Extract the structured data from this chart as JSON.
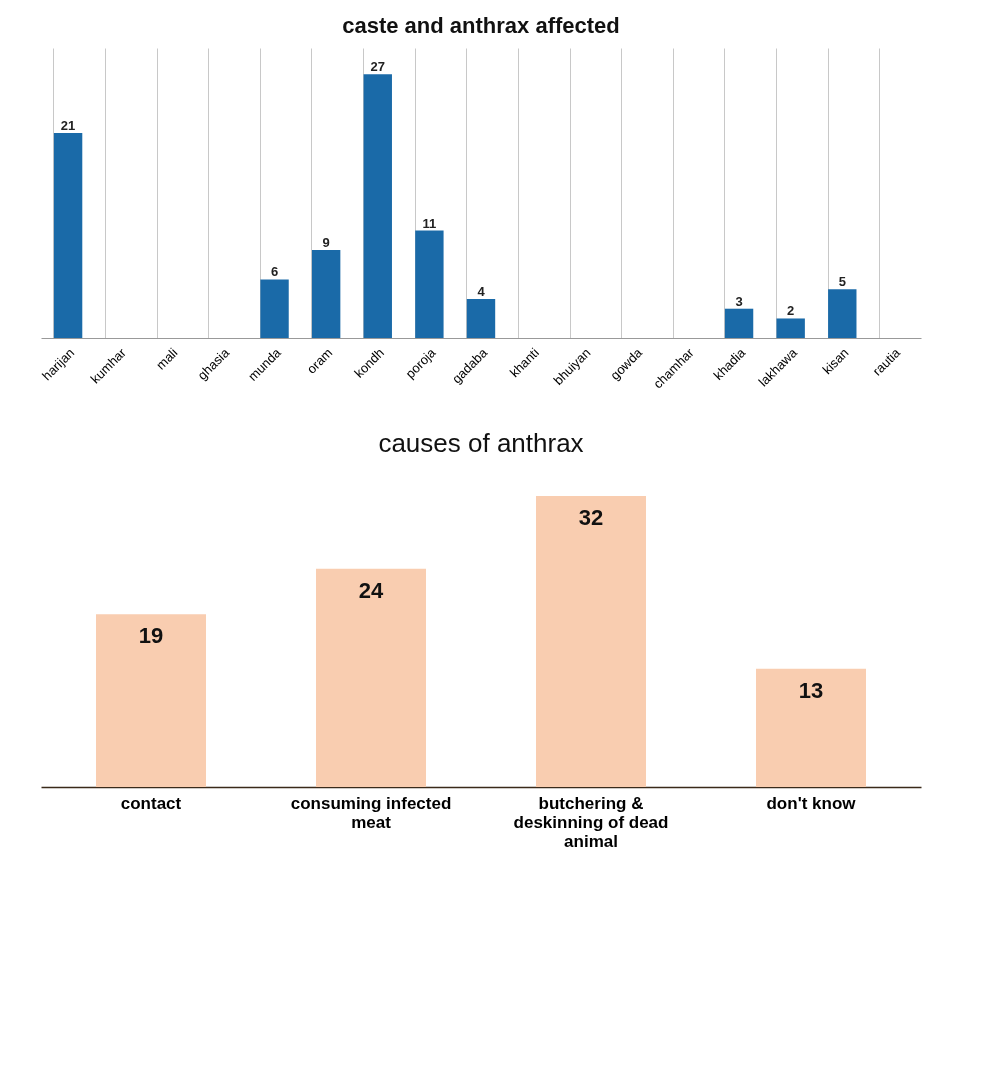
{
  "chart_data": [
    {
      "type": "bar",
      "title": "caste and anthrax affected",
      "categories": [
        "harijan",
        "kumhar",
        "mali",
        "ghasia",
        "munda",
        "oram",
        "kondh",
        "poroja",
        "gadaba",
        "khanti",
        "bhuiyan",
        "gowda",
        "chamhar",
        "khadia",
        "lakhawa",
        "kisan",
        "rautia"
      ],
      "values": [
        21,
        null,
        null,
        null,
        6,
        9,
        27,
        11,
        4,
        null,
        null,
        null,
        null,
        3,
        2,
        5,
        null
      ],
      "color": "#1a6aa8",
      "data_labels": true,
      "grid": "x"
    },
    {
      "type": "bar",
      "title": "causes of anthrax",
      "categories": [
        "contact",
        "consuming infected meat",
        "butchering & deskinning of dead animal",
        "don't know"
      ],
      "values": [
        19,
        24,
        32,
        13
      ],
      "color": "#f9cdb0",
      "data_labels": true
    }
  ]
}
